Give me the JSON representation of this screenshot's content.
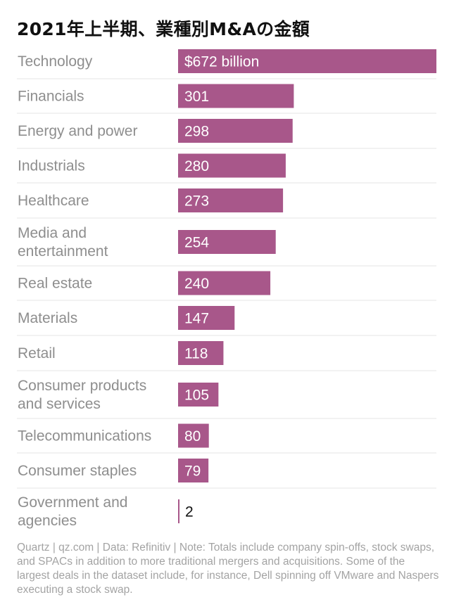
{
  "title": "2021年上半期、業種別M&Aの金額",
  "chart_data": {
    "type": "bar",
    "orientation": "horizontal",
    "title": "2021年上半期、業種別M&Aの金額",
    "xlabel": "",
    "ylabel": "",
    "unit": "billion USD",
    "categories": [
      "Technology",
      "Financials",
      "Energy and power",
      "Industrials",
      "Healthcare",
      "Media and entertainment",
      "Real estate",
      "Materials",
      "Retail",
      "Consumer products and services",
      "Telecommunications",
      "Consumer staples",
      "Government and agencies"
    ],
    "category_lines": [
      [
        "Technology"
      ],
      [
        "Financials"
      ],
      [
        "Energy and power"
      ],
      [
        "Industrials"
      ],
      [
        "Healthcare"
      ],
      [
        "Media and",
        "entertainment"
      ],
      [
        "Real estate"
      ],
      [
        "Materials"
      ],
      [
        "Retail"
      ],
      [
        "Consumer products",
        "and services"
      ],
      [
        "Telecommunications"
      ],
      [
        "Consumer staples"
      ],
      [
        "Government and",
        "agencies"
      ]
    ],
    "values": [
      672,
      301,
      298,
      280,
      273,
      254,
      240,
      147,
      118,
      105,
      80,
      79,
      2
    ],
    "value_labels": [
      "$672 billion",
      "301",
      "298",
      "280",
      "273",
      "254",
      "240",
      "147",
      "118",
      "105",
      "80",
      "79",
      "2"
    ],
    "xlim": [
      0,
      672
    ],
    "grid": false,
    "legend": "none"
  },
  "footnote": "Quartz | qz.com | Data: Refinitiv | Note: Totals include company spin-offs, stock swaps, and SPACs in addition to more traditional mergers and acquisitions. Some of the largest deals in the dataset include, for instance, Dell spinning off VMware and Naspers executing a stock swap.",
  "colors": {
    "bar": "#a8578a",
    "label_inside": "#ffffff",
    "label_outside": "#111111",
    "category_text": "#8e8e8e",
    "divider": "#e6e6e6"
  }
}
